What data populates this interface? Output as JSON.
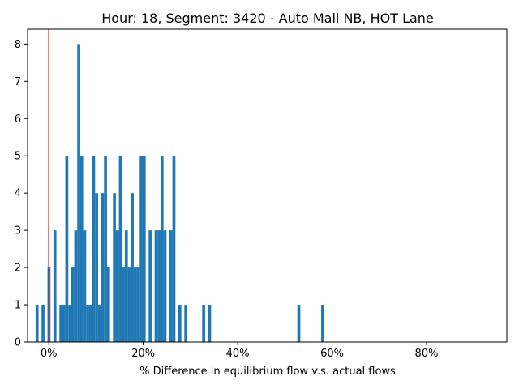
{
  "chart_data": {
    "type": "bar",
    "title": "Hour: 18, Segment: 3420 - Auto Mall NB, HOT Lane",
    "xlabel": "% Difference in equilibrium flow v.s. actual flows",
    "ylabel": "",
    "xlim": [
      -0.045,
      0.97
    ],
    "ylim": [
      0,
      8.4
    ],
    "grid": false,
    "x_ticks": [
      0,
      0.2,
      0.4,
      0.6,
      0.8
    ],
    "x_tick_labels": [
      "0%",
      "20%",
      "40%",
      "60%",
      "80%"
    ],
    "y_ticks": [
      0,
      1,
      2,
      3,
      4,
      5,
      6,
      7,
      8
    ],
    "y_tick_labels": [
      "0",
      "1",
      "2",
      "3",
      "4",
      "5",
      "6",
      "7",
      "8"
    ],
    "bar_color": "#1f77b4",
    "reference_line": {
      "x": 0,
      "color": "#d62728"
    },
    "bins": {
      "start": -0.028,
      "width": 0.0063,
      "counts": [
        1,
        0,
        1,
        0,
        2,
        0,
        3,
        0,
        1,
        1,
        5,
        1,
        2,
        3,
        8,
        5,
        3,
        1,
        1,
        5,
        4,
        1,
        4,
        5,
        2,
        0,
        4,
        3,
        5,
        2,
        3,
        2,
        4,
        2,
        2,
        5,
        5,
        0,
        3,
        0,
        3,
        3,
        5,
        3,
        0,
        3,
        5,
        0,
        1,
        0,
        1,
        0,
        0,
        0,
        0,
        0,
        1,
        0,
        1,
        0,
        0,
        0,
        0,
        0,
        0,
        0,
        0,
        0,
        0,
        0,
        0,
        0,
        0,
        0,
        0,
        0,
        0,
        0,
        0,
        0,
        0,
        0,
        0,
        0,
        0,
        0,
        0,
        0,
        1,
        0,
        0,
        0,
        0,
        0,
        0,
        0,
        1
      ]
    }
  }
}
